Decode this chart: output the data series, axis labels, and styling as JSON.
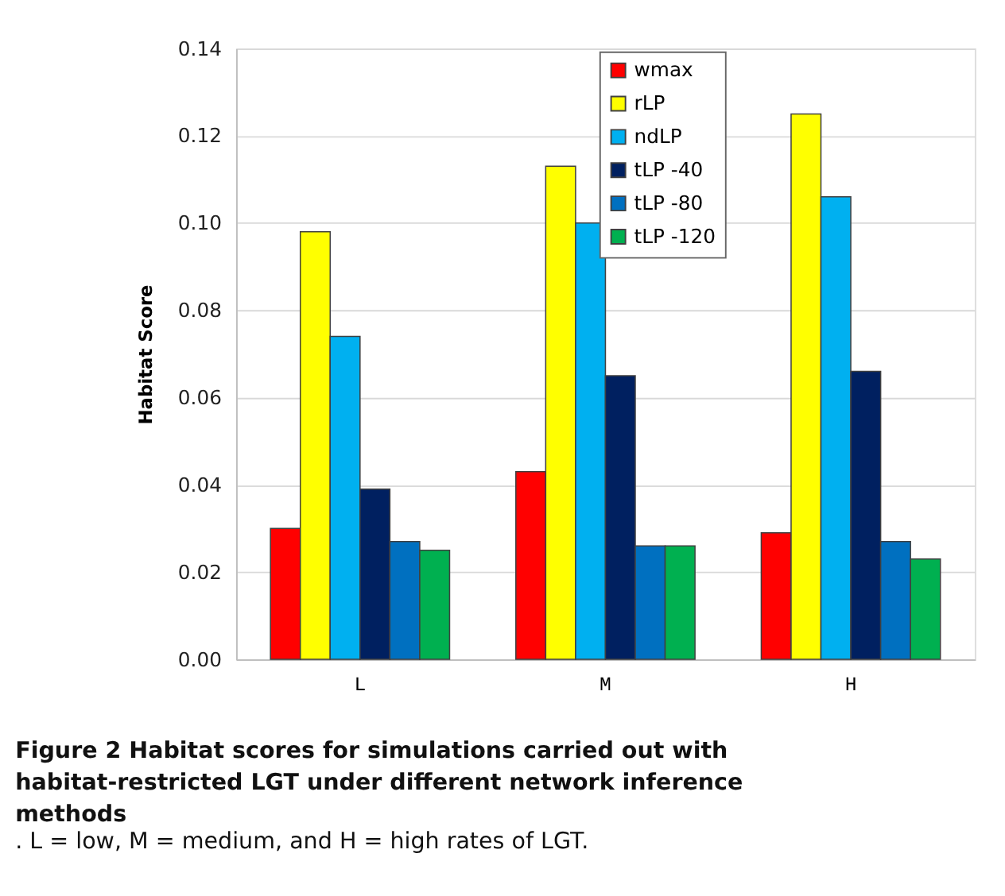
{
  "chart_data": {
    "type": "bar",
    "title": "Figure 2 Habitat scores for simulations carried out with habitat-restricted LGT under different network inference methods",
    "subtitle": ". L = low, M = medium, and H = high rates of LGT.",
    "ylabel": "Habitat Score",
    "categories": [
      "L",
      "M",
      "H"
    ],
    "series": [
      {
        "name": "wmax",
        "color": "#ff0000",
        "values": [
          0.03,
          0.043,
          0.029
        ]
      },
      {
        "name": "rLP",
        "color": "#ffff00",
        "values": [
          0.098,
          0.113,
          0.125
        ]
      },
      {
        "name": "ndLP",
        "color": "#00b0f0",
        "values": [
          0.074,
          0.1,
          0.106
        ]
      },
      {
        "name": "tLP -40",
        "color": "#002060",
        "values": [
          0.039,
          0.065,
          0.066
        ]
      },
      {
        "name": "tLP -80",
        "color": "#0070c0",
        "values": [
          0.027,
          0.026,
          0.027
        ]
      },
      {
        "name": "tLP -120",
        "color": "#00b050",
        "values": [
          0.025,
          0.026,
          0.023
        ]
      }
    ],
    "ylim": [
      0,
      0.14
    ],
    "yticks": [
      {
        "value": 0,
        "label": "0.00"
      },
      {
        "value": 0.02,
        "label": "0.02"
      },
      {
        "value": 0.04,
        "label": "0.04"
      },
      {
        "value": 0.06,
        "label": "0.06"
      },
      {
        "value": 0.08,
        "label": "0.08"
      },
      {
        "value": 0.1,
        "label": "0.10"
      },
      {
        "value": 0.12,
        "label": "0.12"
      },
      {
        "value": 0.14,
        "label": "0.14"
      }
    ],
    "grid": "y",
    "legend": "top"
  }
}
